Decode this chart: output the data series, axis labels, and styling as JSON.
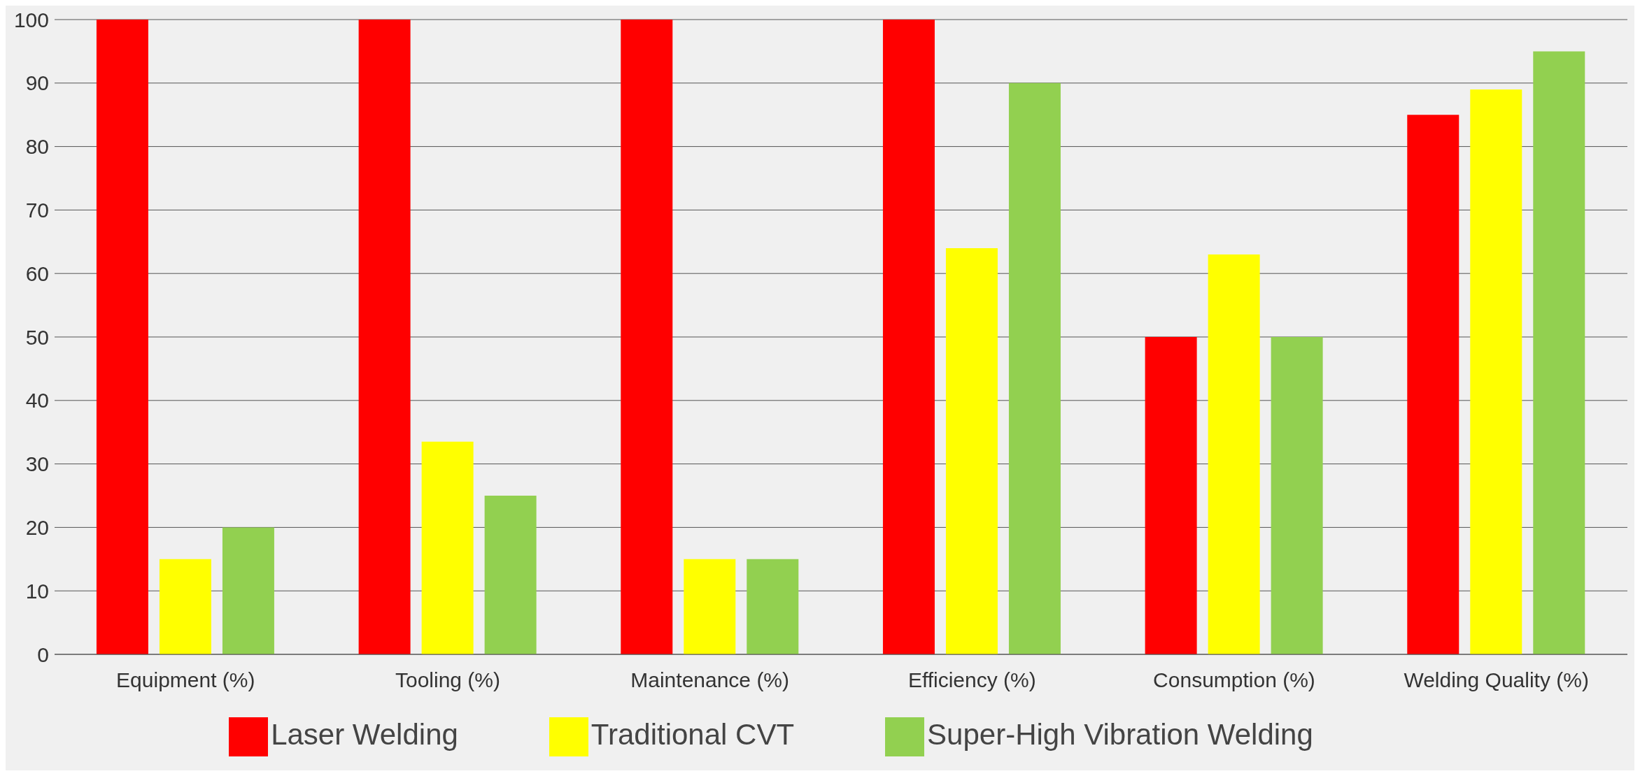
{
  "chart_data": {
    "type": "bar",
    "categories": [
      "Equipment (%)",
      "Tooling (%)",
      "Maintenance (%)",
      "Efficiency (%)",
      "Consumption (%)",
      "Welding Quality (%)"
    ],
    "series": [
      {
        "name": "Laser Welding",
        "color": "#ff0000",
        "values": [
          100,
          100,
          100,
          100,
          50,
          85
        ]
      },
      {
        "name": "Traditional CVT",
        "color": "#ffff00",
        "values": [
          15,
          33.5,
          15,
          64,
          63,
          89
        ]
      },
      {
        "name": "Super-High Vibration Welding",
        "color": "#92d050",
        "values": [
          20,
          25,
          15,
          90,
          50,
          95
        ]
      }
    ],
    "ylim": [
      0,
      100
    ],
    "yticks": [
      0,
      10,
      20,
      30,
      40,
      50,
      60,
      70,
      80,
      90,
      100
    ],
    "grid": "y",
    "legend": "bottom"
  }
}
